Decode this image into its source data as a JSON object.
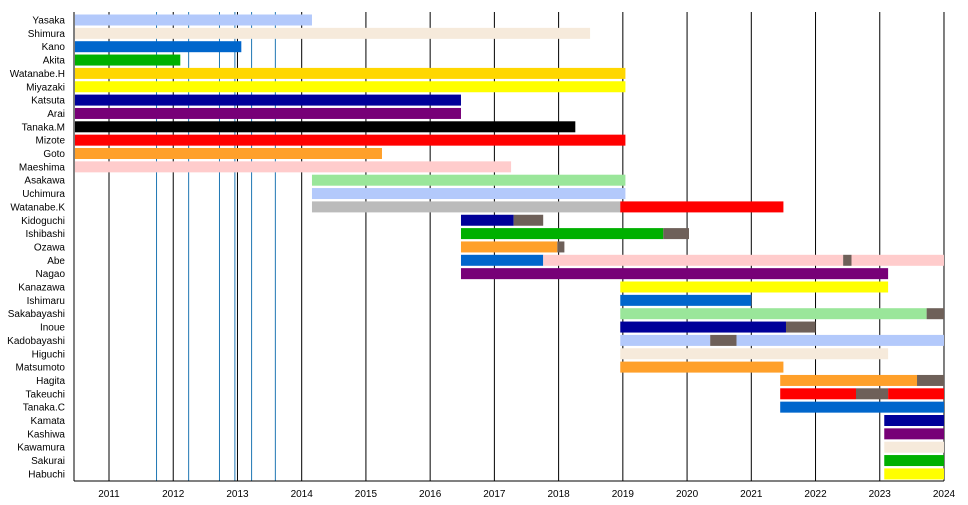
{
  "chart_data": {
    "type": "timeline",
    "title": "",
    "xlim": [
      2010.47,
      2024.0
    ],
    "x_ticks": [
      2011,
      2012,
      2013,
      2014,
      2015,
      2016,
      2017,
      2018,
      2019,
      2020,
      2021,
      2022,
      2023,
      2024
    ],
    "grid": "vertical yearly lines",
    "event_lines": [
      2011.74,
      2012.24,
      2012.72,
      2012.96,
      2013.22,
      2013.59
    ],
    "colors": {
      "lightblue": "#b3c9fb",
      "antique": "#f6eadb",
      "blue": "#0066cc",
      "green": "#00b000",
      "gold": "#ffd700",
      "yellow": "#ffff00",
      "navy": "#000099",
      "purple": "#770077",
      "black": "#000000",
      "red": "#ff0000",
      "orange": "#ffa02a",
      "pink": "#ffcccc",
      "lightgreen": "#9ae69a",
      "grey": "#bbbbbb",
      "hiatus": "#6e6059",
      "event": "#1f77b4"
    },
    "rows": [
      {
        "name": "Yasaka",
        "segments": [
          [
            2010.47,
            2014.16,
            "lightblue"
          ]
        ]
      },
      {
        "name": "Shimura",
        "segments": [
          [
            2010.47,
            2018.49,
            "antique"
          ]
        ]
      },
      {
        "name": "Kano",
        "segments": [
          [
            2010.47,
            2013.06,
            "blue"
          ]
        ]
      },
      {
        "name": "Akita",
        "segments": [
          [
            2010.47,
            2012.11,
            "green"
          ]
        ]
      },
      {
        "name": "Watanabe.H",
        "segments": [
          [
            2010.47,
            2019.04,
            "gold"
          ]
        ]
      },
      {
        "name": "Miyazaki",
        "segments": [
          [
            2010.47,
            2019.04,
            "yellow"
          ]
        ]
      },
      {
        "name": "Katsuta",
        "segments": [
          [
            2010.47,
            2016.48,
            "navy"
          ]
        ]
      },
      {
        "name": "Arai",
        "segments": [
          [
            2010.47,
            2016.48,
            "purple"
          ]
        ]
      },
      {
        "name": "Tanaka.M",
        "segments": [
          [
            2010.47,
            2018.26,
            "black"
          ]
        ]
      },
      {
        "name": "Mizote",
        "segments": [
          [
            2010.47,
            2019.04,
            "red"
          ]
        ]
      },
      {
        "name": "Goto",
        "segments": [
          [
            2010.47,
            2015.25,
            "orange"
          ]
        ]
      },
      {
        "name": "Maeshima",
        "segments": [
          [
            2010.47,
            2017.26,
            "pink"
          ]
        ]
      },
      {
        "name": "Asakawa",
        "segments": [
          [
            2014.16,
            2019.04,
            "lightgreen"
          ]
        ]
      },
      {
        "name": "Uchimura",
        "segments": [
          [
            2014.16,
            2019.04,
            "lightblue"
          ]
        ]
      },
      {
        "name": "Watanabe.K",
        "segments": [
          [
            2014.16,
            2018.96,
            "grey"
          ],
          [
            2018.96,
            2021.5,
            "red"
          ]
        ]
      },
      {
        "name": "Kidoguchi",
        "segments": [
          [
            2016.48,
            2017.3,
            "navy"
          ],
          [
            2017.3,
            2017.76,
            "hiatus"
          ]
        ]
      },
      {
        "name": "Ishibashi",
        "segments": [
          [
            2016.48,
            2019.63,
            "green"
          ],
          [
            2019.63,
            2020.03,
            "hiatus"
          ]
        ]
      },
      {
        "name": "Ozawa",
        "segments": [
          [
            2016.48,
            2017.98,
            "orange"
          ],
          [
            2017.98,
            2018.09,
            "hiatus"
          ]
        ]
      },
      {
        "name": "Abe",
        "segments": [
          [
            2016.48,
            2017.76,
            "blue"
          ],
          [
            2017.76,
            2022.43,
            "pink"
          ],
          [
            2022.43,
            2022.56,
            "hiatus"
          ],
          [
            2022.56,
            2024.0,
            "pink"
          ]
        ]
      },
      {
        "name": "Nagao",
        "segments": [
          [
            2016.48,
            2023.13,
            "purple"
          ]
        ]
      },
      {
        "name": "Kanazawa",
        "segments": [
          [
            2018.96,
            2023.13,
            "yellow"
          ]
        ]
      },
      {
        "name": "Ishimaru",
        "segments": [
          [
            2018.96,
            2021.0,
            "blue"
          ]
        ]
      },
      {
        "name": "Sakabayashi",
        "segments": [
          [
            2018.96,
            2023.73,
            "lightgreen"
          ],
          [
            2023.73,
            2024.0,
            "hiatus"
          ]
        ]
      },
      {
        "name": "Inoue",
        "segments": [
          [
            2018.96,
            2021.54,
            "navy"
          ],
          [
            2021.54,
            2022.0,
            "hiatus"
          ]
        ]
      },
      {
        "name": "Kadobayashi",
        "segments": [
          [
            2018.96,
            2020.36,
            "lightblue"
          ],
          [
            2020.36,
            2020.77,
            "hiatus"
          ],
          [
            2020.77,
            2024.0,
            "lightblue"
          ]
        ]
      },
      {
        "name": "Higuchi",
        "segments": [
          [
            2018.96,
            2023.13,
            "antique"
          ]
        ]
      },
      {
        "name": "Matsumoto",
        "segments": [
          [
            2018.96,
            2021.5,
            "orange"
          ]
        ]
      },
      {
        "name": "Hagita",
        "segments": [
          [
            2021.45,
            2023.58,
            "orange"
          ],
          [
            2023.58,
            2024.0,
            "hiatus"
          ]
        ]
      },
      {
        "name": "Takeuchi",
        "segments": [
          [
            2021.45,
            2022.63,
            "red"
          ],
          [
            2022.63,
            2023.13,
            "hiatus"
          ],
          [
            2023.13,
            2024.0,
            "red"
          ]
        ]
      },
      {
        "name": "Tanaka.C",
        "segments": [
          [
            2021.45,
            2024.0,
            "blue"
          ]
        ]
      },
      {
        "name": "Kamata",
        "segments": [
          [
            2023.07,
            2024.0,
            "navy"
          ]
        ]
      },
      {
        "name": "Kashiwa",
        "segments": [
          [
            2023.07,
            2024.0,
            "purple"
          ]
        ]
      },
      {
        "name": "Kawamura",
        "segments": [
          [
            2023.07,
            2024.0,
            "antique"
          ]
        ]
      },
      {
        "name": "Sakurai",
        "segments": [
          [
            2023.07,
            2024.0,
            "green"
          ]
        ]
      },
      {
        "name": "Habuchi",
        "segments": [
          [
            2023.07,
            2024.0,
            "yellow"
          ]
        ]
      }
    ]
  }
}
